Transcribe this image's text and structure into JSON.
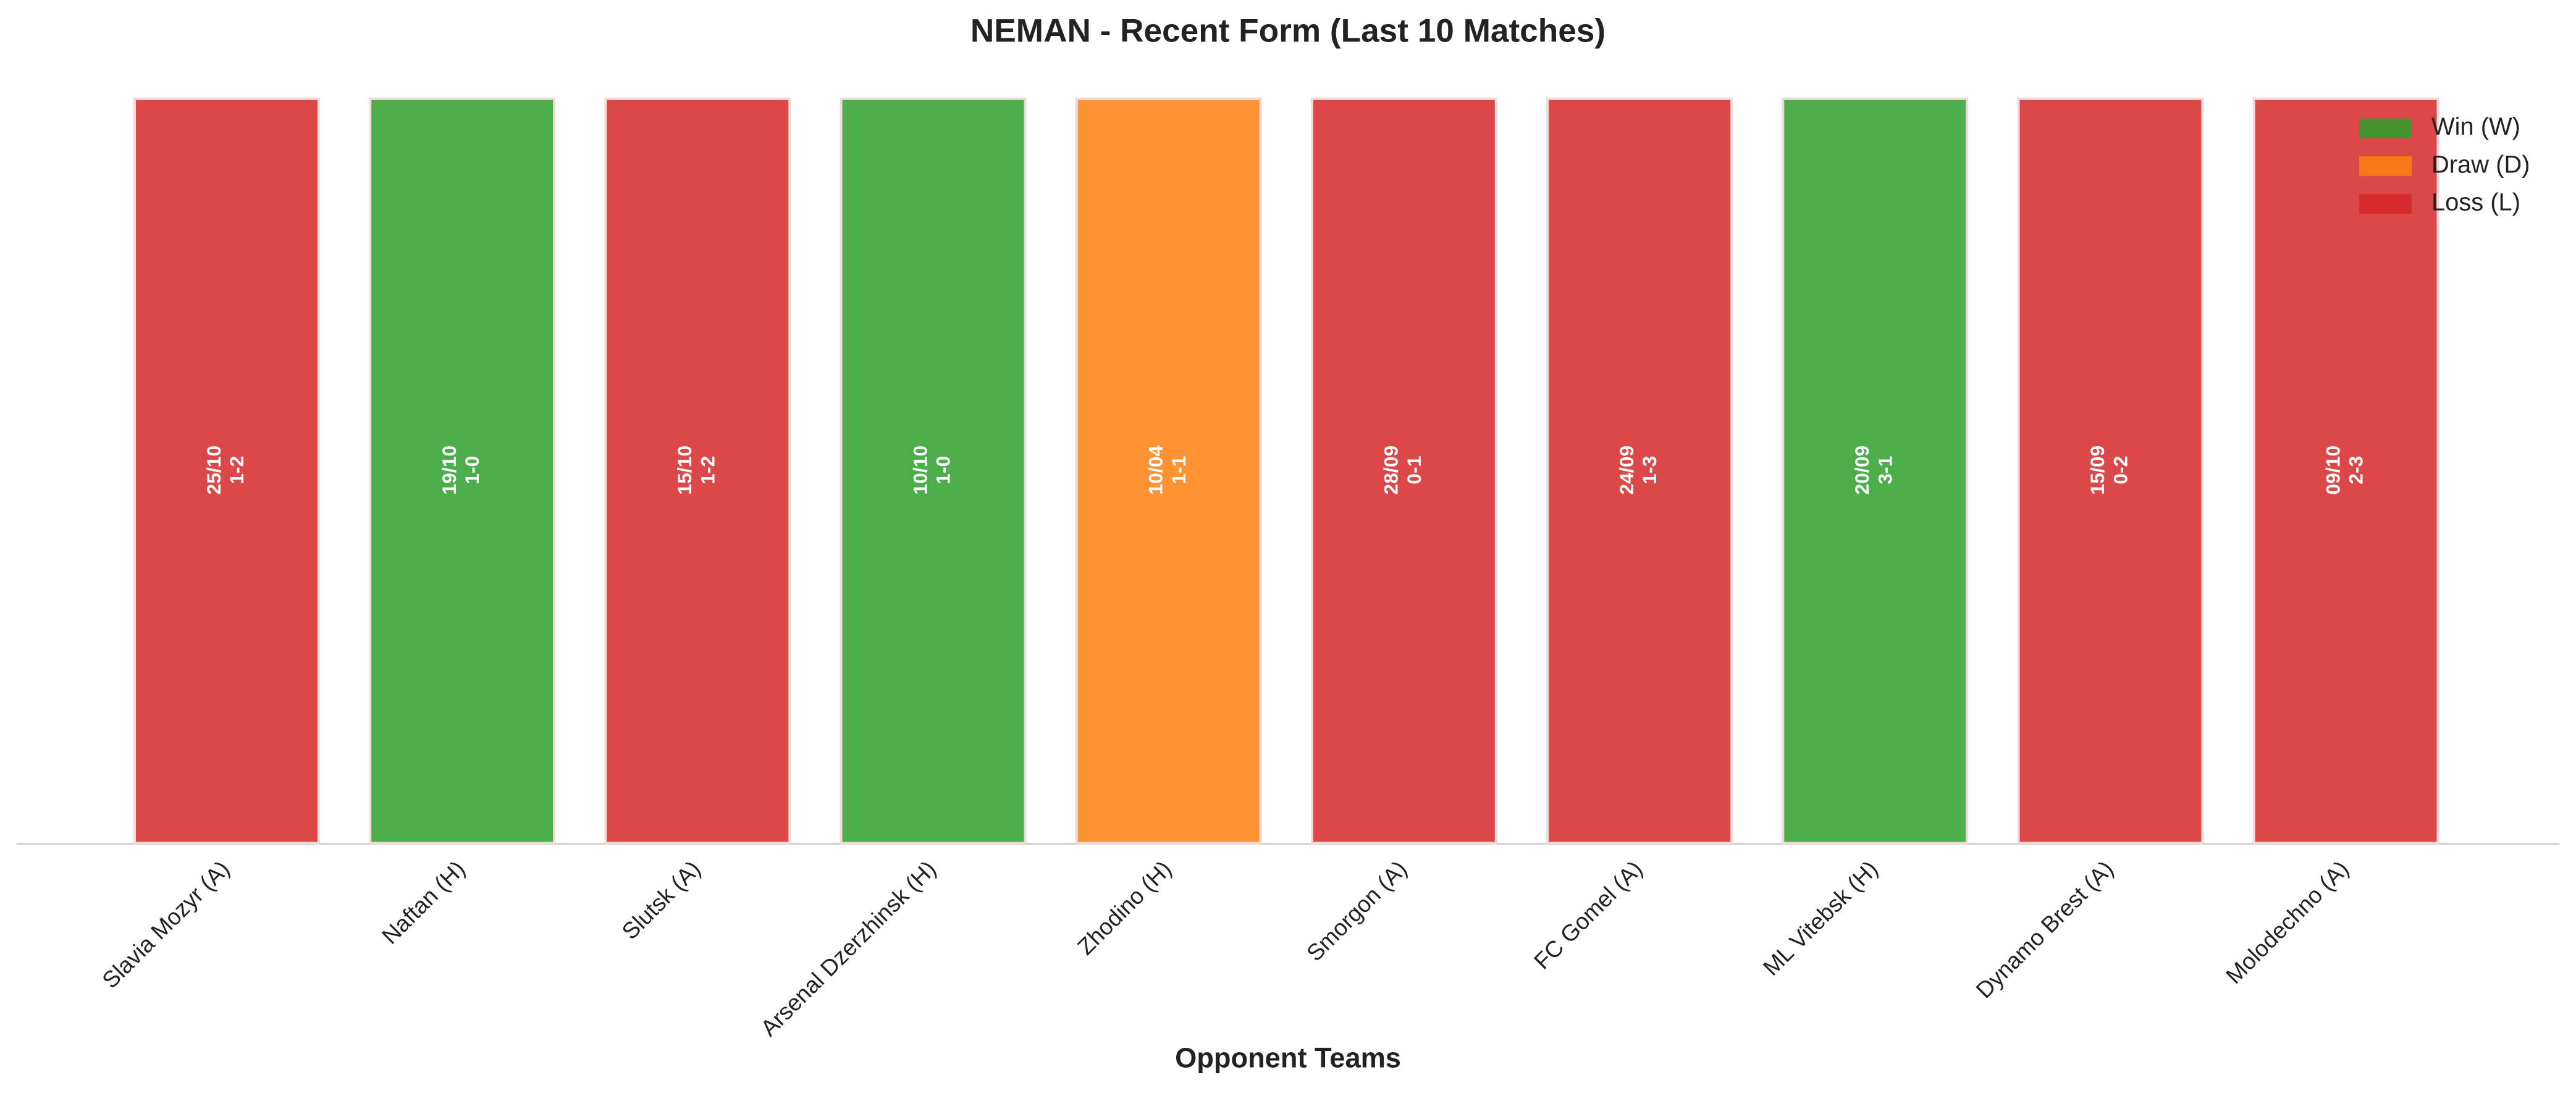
{
  "chart_data": {
    "type": "bar",
    "title": "NEMAN - Recent Form (Last 10 Matches)",
    "xlabel": "Opponent Teams",
    "categories": [
      "Slavia Mozyr (A)",
      "Naftan (H)",
      "Slutsk (A)",
      "Arsenal Dzerzhinsk (H)",
      "Zhodino (H)",
      "Smorgon (A)",
      "FC Gomel (A)",
      "ML Vitebsk (H)",
      "Dynamo Brest (A)",
      "Molodechno (A)"
    ],
    "dates": [
      "25/10",
      "19/10",
      "15/10",
      "10/10",
      "10/04",
      "28/09",
      "24/09",
      "20/09",
      "15/09",
      "09/10"
    ],
    "scores": [
      "1-2",
      "1-0",
      "1-2",
      "1-0",
      "1-1",
      "0-1",
      "1-3",
      "3-1",
      "0-2",
      "2-3"
    ],
    "series": [
      {
        "name": "Win (W)",
        "color": "#2ca02c",
        "values": [
          null,
          1,
          null,
          1,
          null,
          null,
          null,
          1,
          null,
          null
        ]
      },
      {
        "name": "Draw (D)",
        "color": "#ff7f0e",
        "values": [
          null,
          null,
          null,
          null,
          1,
          null,
          null,
          null,
          null,
          null
        ]
      },
      {
        "name": "Loss (L)",
        "color": "#d62728",
        "values": [
          1,
          null,
          1,
          null,
          null,
          1,
          1,
          null,
          1,
          1
        ]
      }
    ],
    "ylim": [
      0,
      1
    ],
    "legend": "upper right"
  }
}
